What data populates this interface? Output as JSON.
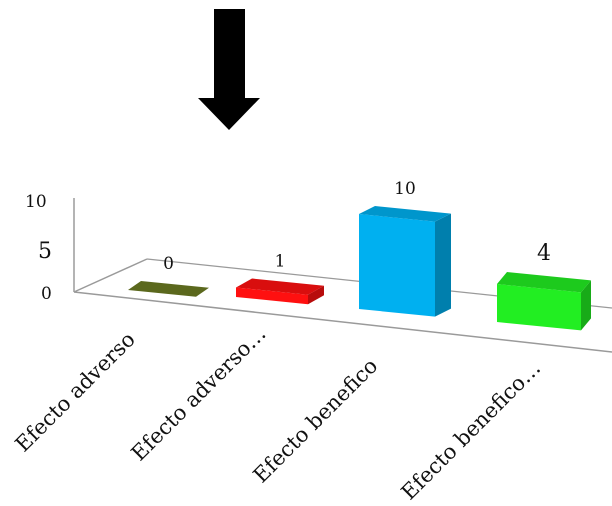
{
  "chart_data": {
    "type": "bar",
    "title": "",
    "xlabel": "",
    "ylabel": "",
    "categories": [
      "Efecto adverso",
      "Efecto adverso…",
      "Efecto benefico",
      "Efecto benefico…"
    ],
    "values": [
      0,
      1,
      10,
      4
    ],
    "data_labels": [
      "0",
      "1",
      "10",
      "4"
    ],
    "ylim": [
      0,
      10
    ],
    "y_ticks": [
      "0",
      "5",
      "10"
    ],
    "colors": [
      "#6b7a22",
      "#ff1010",
      "#00b0f0",
      "#22ee22"
    ],
    "style": "3d-perspective",
    "grid": false,
    "legend": "none"
  },
  "annotation": {
    "icon": "down-arrow-icon",
    "color": "#000000"
  }
}
